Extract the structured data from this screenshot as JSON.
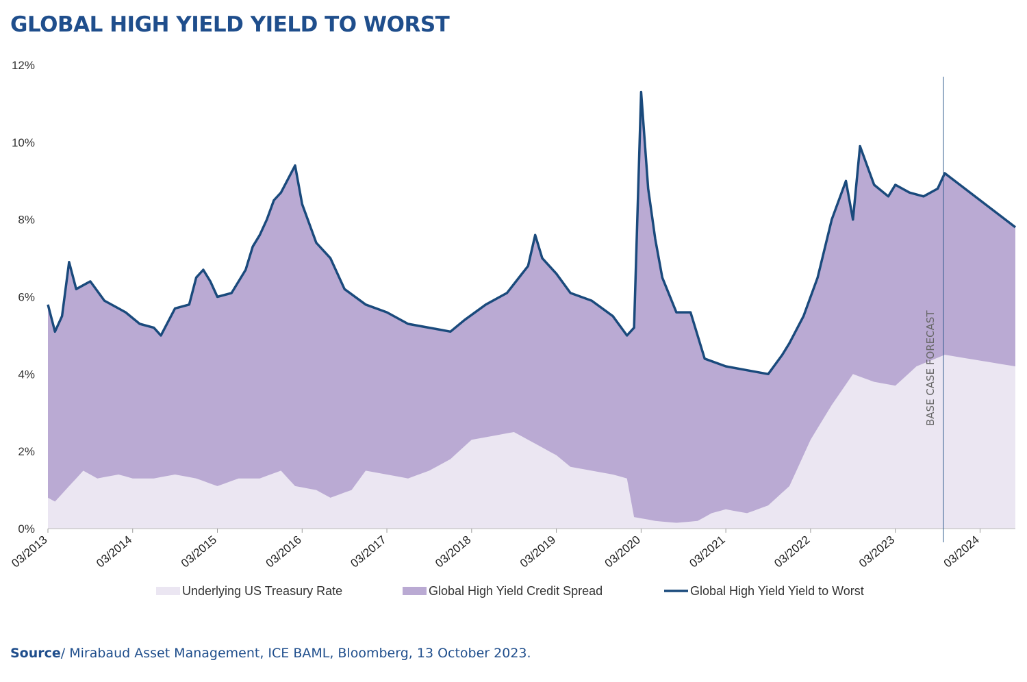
{
  "page": {
    "title": "GLOBAL HIGH YIELD YIELD TO WORST",
    "source_label": "Source",
    "source_text": "/ Mirabaud Asset Management, ICE BAML, Bloomberg, 13 October 2023."
  },
  "colors": {
    "title": "#1f4e8c",
    "treasury_fill": "#ebe6f2",
    "spread_fill": "#baaad3",
    "ytw_line": "#1a4a7c",
    "forecast_line": "#2e5a8e"
  },
  "chart_data": {
    "type": "area",
    "title": "",
    "xlabel": "",
    "ylabel": "",
    "ylim": [
      0,
      12
    ],
    "y_ticks": [
      "0%",
      "2%",
      "4%",
      "6%",
      "8%",
      "10%",
      "12%"
    ],
    "y_tick_values": [
      0,
      2,
      4,
      6,
      8,
      10,
      12
    ],
    "x_range": [
      "2013-03",
      "2024-08"
    ],
    "x_tick_labels": [
      "03/2013",
      "03/2014",
      "03/2015",
      "03/2016",
      "03/2017",
      "03/2018",
      "03/2019",
      "03/2020",
      "03/2021",
      "03/2022",
      "03/2023",
      "03/2024"
    ],
    "x_tick_values": [
      "2013-03",
      "2014-03",
      "2015-03",
      "2016-03",
      "2017-03",
      "2018-03",
      "2019-03",
      "2020-03",
      "2021-03",
      "2022-03",
      "2023-03",
      "2024-03"
    ],
    "legend_position": "bottom",
    "grid": false,
    "forecast_marker": {
      "date": "2023-10",
      "label": "BASE CASE FORECAST"
    },
    "series": [
      {
        "name": "Underlying US Treasury Rate",
        "style": "area",
        "points": [
          [
            "2013-03",
            0.8
          ],
          [
            "2013-04",
            0.7
          ],
          [
            "2013-06",
            1.1
          ],
          [
            "2013-08",
            1.5
          ],
          [
            "2013-10",
            1.3
          ],
          [
            "2014-01",
            1.4
          ],
          [
            "2014-03",
            1.3
          ],
          [
            "2014-06",
            1.3
          ],
          [
            "2014-09",
            1.4
          ],
          [
            "2014-12",
            1.3
          ],
          [
            "2015-03",
            1.1
          ],
          [
            "2015-06",
            1.3
          ],
          [
            "2015-09",
            1.3
          ],
          [
            "2015-12",
            1.5
          ],
          [
            "2016-02",
            1.1
          ],
          [
            "2016-05",
            1.0
          ],
          [
            "2016-07",
            0.8
          ],
          [
            "2016-10",
            1.0
          ],
          [
            "2016-12",
            1.5
          ],
          [
            "2017-03",
            1.4
          ],
          [
            "2017-06",
            1.3
          ],
          [
            "2017-09",
            1.5
          ],
          [
            "2017-12",
            1.8
          ],
          [
            "2018-03",
            2.3
          ],
          [
            "2018-06",
            2.4
          ],
          [
            "2018-09",
            2.5
          ],
          [
            "2018-11",
            2.3
          ],
          [
            "2019-01",
            2.1
          ],
          [
            "2019-03",
            1.9
          ],
          [
            "2019-05",
            1.6
          ],
          [
            "2019-08",
            1.5
          ],
          [
            "2019-11",
            1.4
          ],
          [
            "2020-01",
            1.3
          ],
          [
            "2020-02",
            0.3
          ],
          [
            "2020-05",
            0.2
          ],
          [
            "2020-08",
            0.15
          ],
          [
            "2020-11",
            0.2
          ],
          [
            "2021-01",
            0.4
          ],
          [
            "2021-03",
            0.5
          ],
          [
            "2021-06",
            0.4
          ],
          [
            "2021-09",
            0.6
          ],
          [
            "2021-12",
            1.1
          ],
          [
            "2022-03",
            2.3
          ],
          [
            "2022-06",
            3.2
          ],
          [
            "2022-09",
            4.0
          ],
          [
            "2022-12",
            3.8
          ],
          [
            "2023-03",
            3.7
          ],
          [
            "2023-06",
            4.2
          ],
          [
            "2023-10",
            4.5
          ],
          [
            "2024-08",
            4.2
          ]
        ]
      },
      {
        "name": "Global High Yield Credit Spread",
        "style": "area",
        "note_values_are_total_yield": true
      },
      {
        "name": "Global High Yield Yield to Worst",
        "style": "line",
        "points": [
          [
            "2013-03",
            5.8
          ],
          [
            "2013-04",
            5.1
          ],
          [
            "2013-05",
            5.5
          ],
          [
            "2013-06",
            6.9
          ],
          [
            "2013-07",
            6.2
          ],
          [
            "2013-09",
            6.4
          ],
          [
            "2013-11",
            5.9
          ],
          [
            "2014-01",
            5.7
          ],
          [
            "2014-02",
            5.6
          ],
          [
            "2014-04",
            5.3
          ],
          [
            "2014-06",
            5.2
          ],
          [
            "2014-07",
            5.0
          ],
          [
            "2014-09",
            5.7
          ],
          [
            "2014-11",
            5.8
          ],
          [
            "2014-12",
            6.5
          ],
          [
            "2015-01",
            6.7
          ],
          [
            "2015-02",
            6.4
          ],
          [
            "2015-03",
            6.0
          ],
          [
            "2015-05",
            6.1
          ],
          [
            "2015-07",
            6.7
          ],
          [
            "2015-08",
            7.3
          ],
          [
            "2015-09",
            7.6
          ],
          [
            "2015-10",
            8.0
          ],
          [
            "2015-11",
            8.5
          ],
          [
            "2015-12",
            8.7
          ],
          [
            "2016-02",
            9.4
          ],
          [
            "2016-03",
            8.4
          ],
          [
            "2016-05",
            7.4
          ],
          [
            "2016-07",
            7.0
          ],
          [
            "2016-09",
            6.2
          ],
          [
            "2016-12",
            5.8
          ],
          [
            "2017-03",
            5.6
          ],
          [
            "2017-06",
            5.3
          ],
          [
            "2017-09",
            5.2
          ],
          [
            "2017-12",
            5.1
          ],
          [
            "2018-02",
            5.4
          ],
          [
            "2018-05",
            5.8
          ],
          [
            "2018-08",
            6.1
          ],
          [
            "2018-11",
            6.8
          ],
          [
            "2018-12",
            7.6
          ],
          [
            "2019-01",
            7.0
          ],
          [
            "2019-03",
            6.6
          ],
          [
            "2019-05",
            6.1
          ],
          [
            "2019-08",
            5.9
          ],
          [
            "2019-11",
            5.5
          ],
          [
            "2020-01",
            5.0
          ],
          [
            "2020-02",
            5.2
          ],
          [
            "2020-03",
            11.3
          ],
          [
            "2020-04",
            8.8
          ],
          [
            "2020-05",
            7.5
          ],
          [
            "2020-06",
            6.5
          ],
          [
            "2020-08",
            5.6
          ],
          [
            "2020-10",
            5.6
          ],
          [
            "2020-12",
            4.4
          ],
          [
            "2021-03",
            4.2
          ],
          [
            "2021-06",
            4.1
          ],
          [
            "2021-09",
            4.0
          ],
          [
            "2021-11",
            4.5
          ],
          [
            "2021-12",
            4.8
          ],
          [
            "2022-02",
            5.5
          ],
          [
            "2022-04",
            6.5
          ],
          [
            "2022-06",
            8.0
          ],
          [
            "2022-08",
            9.0
          ],
          [
            "2022-09",
            8.0
          ],
          [
            "2022-10",
            9.9
          ],
          [
            "2022-12",
            8.9
          ],
          [
            "2023-02",
            8.6
          ],
          [
            "2023-03",
            8.9
          ],
          [
            "2023-05",
            8.7
          ],
          [
            "2023-07",
            8.6
          ],
          [
            "2023-09",
            8.8
          ],
          [
            "2023-10",
            9.2
          ],
          [
            "2024-08",
            7.8
          ]
        ]
      }
    ]
  }
}
